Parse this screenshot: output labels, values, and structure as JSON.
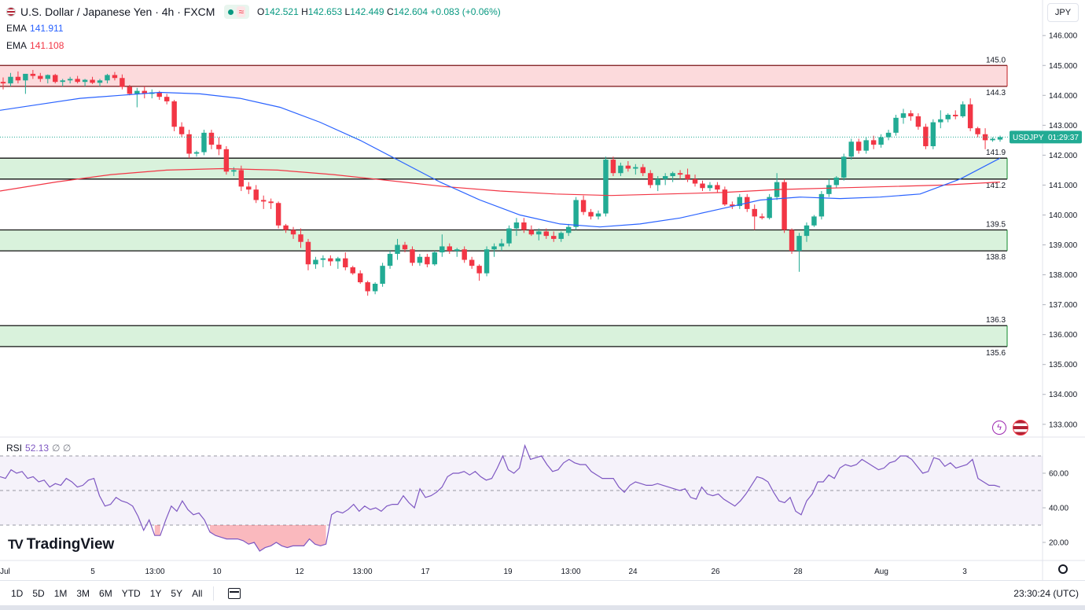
{
  "header": {
    "symbol_title": "U.S. Dollar / Japanese Yen · 4h · FXCM",
    "wave_icon": "≈",
    "ohlc": [
      {
        "k": "O",
        "v": "142.521"
      },
      {
        "k": "H",
        "v": "142.653"
      },
      {
        "k": "L",
        "v": "142.449"
      },
      {
        "k": "C",
        "v": "142.604"
      }
    ],
    "change": "+0.083 (+0.06%)",
    "currency": "JPY"
  },
  "indicators": {
    "ema1_label": "EMA",
    "ema1_value": "141.911",
    "ema2_label": "EMA",
    "ema2_value": "141.108",
    "rsi_label": "RSI",
    "rsi_value": "52.13",
    "rsi_extra": "∅ ∅"
  },
  "logo_text": "TradingView",
  "bottom": {
    "ranges": [
      "1D",
      "5D",
      "1M",
      "3M",
      "6M",
      "YTD",
      "1Y",
      "5Y",
      "All"
    ],
    "clock": "23:30:24 (UTC)"
  },
  "colors": {
    "up": "#22ab94",
    "down": "#f23645",
    "ema_fast": "#2962ff",
    "ema_slow": "#f23645",
    "rsi": "#7e57c2",
    "zone_red": "#fcd4d6",
    "zone_green": "#d2f0d6"
  },
  "chart_data": {
    "type": "candlestick",
    "symbol": "USDJPY",
    "timeframe": "4h",
    "countdown": "01:29:37",
    "last_price": 142.604,
    "y_axis": {
      "ticks": [
        "146.000",
        "145.000",
        "144.000",
        "143.000",
        "142.000",
        "141.000",
        "140.000",
        "139.000",
        "138.000",
        "137.000",
        "136.000",
        "135.000",
        "134.000",
        "133.000"
      ],
      "range": [
        132.6,
        146.4
      ]
    },
    "x_axis": {
      "ticks": [
        "Jul",
        "5",
        "13:00",
        "10",
        "12",
        "13:00",
        "17",
        "19",
        "13:00",
        "24",
        "26",
        "28",
        "Aug",
        "3"
      ]
    },
    "zones": [
      {
        "color": "red",
        "top": 145.0,
        "bottom": 144.3,
        "top_label": "145.0",
        "bottom_label": "144.3"
      },
      {
        "color": "green",
        "top": 141.9,
        "bottom": 141.2,
        "top_label": "141.9",
        "bottom_label": "141.2"
      },
      {
        "color": "green",
        "top": 139.5,
        "bottom": 138.8,
        "top_label": "139.5",
        "bottom_label": "138.8"
      },
      {
        "color": "green",
        "top": 136.3,
        "bottom": 135.6,
        "top_label": "136.3",
        "bottom_label": "135.6"
      }
    ],
    "candles_ohlc": [
      [
        144.45,
        144.6,
        144.2,
        144.4
      ],
      [
        144.4,
        144.75,
        144.3,
        144.62
      ],
      [
        144.62,
        144.8,
        144.4,
        144.5
      ],
      [
        144.5,
        144.6,
        144.05,
        144.72
      ],
      [
        144.72,
        144.85,
        144.55,
        144.65
      ],
      [
        144.65,
        144.75,
        144.45,
        144.55
      ],
      [
        144.55,
        144.7,
        144.4,
        144.68
      ],
      [
        144.68,
        144.72,
        144.4,
        144.45
      ],
      [
        144.45,
        144.55,
        144.3,
        144.5
      ],
      [
        144.5,
        144.62,
        144.4,
        144.55
      ],
      [
        144.55,
        144.65,
        144.4,
        144.45
      ],
      [
        144.45,
        144.55,
        144.3,
        144.52
      ],
      [
        144.52,
        144.62,
        144.38,
        144.42
      ],
      [
        144.42,
        144.55,
        144.3,
        144.5
      ],
      [
        144.5,
        144.72,
        144.4,
        144.68
      ],
      [
        144.68,
        144.78,
        144.5,
        144.58
      ],
      [
        144.58,
        144.7,
        144.2,
        144.28
      ],
      [
        144.28,
        144.35,
        144.0,
        144.05
      ],
      [
        144.05,
        144.25,
        143.6,
        144.15
      ],
      [
        144.15,
        144.3,
        143.9,
        144.05
      ],
      [
        144.05,
        144.2,
        143.9,
        144.1
      ],
      [
        144.1,
        144.15,
        143.85,
        143.95
      ],
      [
        143.95,
        144.05,
        143.7,
        143.8
      ],
      [
        143.8,
        143.85,
        142.8,
        142.95
      ],
      [
        142.95,
        143.1,
        142.6,
        142.7
      ],
      [
        142.7,
        142.85,
        141.9,
        142.05
      ],
      [
        142.05,
        142.15,
        141.95,
        142.1
      ],
      [
        142.1,
        142.85,
        142.0,
        142.75
      ],
      [
        142.75,
        142.85,
        142.2,
        142.35
      ],
      [
        142.35,
        142.6,
        142.0,
        142.2
      ],
      [
        142.2,
        142.3,
        141.35,
        141.45
      ],
      [
        141.45,
        141.6,
        141.3,
        141.5
      ],
      [
        141.5,
        141.65,
        140.8,
        140.95
      ],
      [
        140.95,
        141.1,
        140.7,
        140.85
      ],
      [
        140.85,
        141.0,
        140.4,
        140.5
      ],
      [
        140.5,
        140.65,
        140.2,
        140.45
      ],
      [
        140.45,
        140.55,
        140.2,
        140.4
      ],
      [
        140.4,
        140.45,
        139.55,
        139.65
      ],
      [
        139.65,
        139.7,
        139.4,
        139.5
      ],
      [
        139.5,
        139.6,
        139.2,
        139.35
      ],
      [
        139.35,
        139.55,
        138.9,
        139.1
      ],
      [
        139.1,
        139.2,
        138.15,
        138.35
      ],
      [
        138.35,
        138.6,
        138.2,
        138.5
      ],
      [
        138.5,
        138.65,
        138.25,
        138.55
      ],
      [
        138.55,
        138.65,
        138.3,
        138.45
      ],
      [
        138.45,
        138.6,
        138.2,
        138.55
      ],
      [
        138.55,
        138.75,
        138.15,
        138.25
      ],
      [
        138.25,
        138.3,
        138.0,
        138.05
      ],
      [
        138.05,
        138.15,
        137.7,
        137.75
      ],
      [
        137.75,
        137.8,
        137.3,
        137.45
      ],
      [
        137.45,
        137.75,
        137.35,
        137.7
      ],
      [
        137.7,
        138.4,
        137.6,
        138.3
      ],
      [
        138.3,
        138.8,
        138.2,
        138.7
      ],
      [
        138.7,
        139.2,
        138.5,
        139.0
      ],
      [
        139.0,
        139.1,
        138.75,
        138.85
      ],
      [
        138.85,
        138.95,
        138.3,
        138.4
      ],
      [
        138.4,
        138.7,
        138.3,
        138.6
      ],
      [
        138.6,
        138.7,
        138.25,
        138.35
      ],
      [
        138.35,
        138.8,
        138.3,
        138.75
      ],
      [
        138.75,
        139.35,
        138.6,
        138.95
      ],
      [
        138.95,
        139.05,
        138.7,
        138.8
      ],
      [
        138.8,
        138.9,
        138.6,
        138.85
      ],
      [
        138.85,
        138.95,
        138.4,
        138.5
      ],
      [
        138.5,
        138.6,
        138.2,
        138.3
      ],
      [
        138.3,
        138.35,
        137.8,
        138.05
      ],
      [
        138.05,
        138.95,
        137.95,
        138.85
      ],
      [
        138.85,
        139.05,
        138.6,
        138.95
      ],
      [
        138.95,
        139.2,
        138.8,
        139.05
      ],
      [
        139.05,
        139.65,
        138.95,
        139.55
      ],
      [
        139.55,
        139.9,
        139.3,
        139.75
      ],
      [
        139.75,
        139.9,
        139.4,
        139.5
      ],
      [
        139.5,
        139.65,
        139.3,
        139.35
      ],
      [
        139.35,
        139.55,
        139.15,
        139.45
      ],
      [
        139.45,
        139.55,
        139.2,
        139.3
      ],
      [
        139.3,
        139.45,
        139.1,
        139.2
      ],
      [
        139.2,
        139.45,
        139.1,
        139.4
      ],
      [
        139.4,
        139.7,
        139.3,
        139.6
      ],
      [
        139.6,
        140.6,
        139.5,
        140.5
      ],
      [
        140.5,
        140.65,
        140.0,
        140.1
      ],
      [
        140.1,
        140.2,
        139.85,
        139.95
      ],
      [
        139.95,
        140.15,
        139.85,
        140.05
      ],
      [
        140.05,
        141.95,
        139.95,
        141.85
      ],
      [
        141.85,
        141.95,
        141.3,
        141.4
      ],
      [
        141.4,
        141.75,
        141.3,
        141.65
      ],
      [
        141.65,
        141.8,
        141.45,
        141.55
      ],
      [
        141.55,
        141.7,
        141.35,
        141.6
      ],
      [
        141.6,
        141.7,
        141.3,
        141.4
      ],
      [
        141.4,
        141.5,
        140.9,
        141.0
      ],
      [
        141.0,
        141.3,
        140.8,
        141.2
      ],
      [
        141.2,
        141.4,
        141.0,
        141.3
      ],
      [
        141.3,
        141.45,
        141.1,
        141.4
      ],
      [
        141.4,
        141.5,
        141.2,
        141.35
      ],
      [
        141.35,
        141.55,
        141.1,
        141.2
      ],
      [
        141.2,
        141.35,
        140.95,
        141.05
      ],
      [
        141.05,
        141.15,
        140.8,
        140.9
      ],
      [
        140.9,
        141.1,
        140.8,
        141.0
      ],
      [
        141.0,
        141.1,
        140.75,
        140.85
      ],
      [
        140.85,
        140.95,
        140.3,
        140.35
      ],
      [
        140.35,
        140.45,
        140.2,
        140.3
      ],
      [
        140.3,
        140.7,
        140.2,
        140.6
      ],
      [
        140.6,
        140.7,
        140.1,
        140.2
      ],
      [
        140.2,
        140.35,
        139.5,
        139.95
      ],
      [
        139.95,
        140.05,
        139.85,
        139.9
      ],
      [
        139.9,
        140.7,
        139.85,
        140.6
      ],
      [
        140.6,
        141.4,
        140.5,
        141.1
      ],
      [
        141.1,
        141.2,
        139.4,
        139.5
      ],
      [
        139.5,
        139.55,
        138.7,
        138.8
      ],
      [
        138.8,
        139.4,
        138.1,
        139.3
      ],
      [
        139.3,
        139.75,
        139.1,
        139.65
      ],
      [
        139.65,
        140.0,
        139.6,
        139.95
      ],
      [
        139.95,
        140.8,
        139.85,
        140.7
      ],
      [
        140.7,
        141.2,
        140.6,
        141.0
      ],
      [
        141.0,
        141.3,
        140.9,
        141.25
      ],
      [
        141.25,
        142.05,
        141.15,
        141.95
      ],
      [
        141.95,
        142.55,
        141.85,
        142.45
      ],
      [
        142.45,
        142.55,
        142.05,
        142.15
      ],
      [
        142.15,
        142.6,
        142.05,
        142.5
      ],
      [
        142.5,
        142.65,
        142.2,
        142.35
      ],
      [
        142.35,
        142.7,
        142.25,
        142.6
      ],
      [
        142.6,
        142.85,
        142.5,
        142.75
      ],
      [
        142.75,
        143.35,
        142.65,
        143.25
      ],
      [
        143.25,
        143.55,
        143.05,
        143.4
      ],
      [
        143.4,
        143.5,
        143.15,
        143.3
      ],
      [
        143.3,
        143.4,
        142.85,
        142.95
      ],
      [
        142.95,
        143.05,
        142.2,
        142.3
      ],
      [
        142.3,
        143.2,
        142.2,
        143.1
      ],
      [
        143.1,
        143.5,
        142.9,
        143.2
      ],
      [
        143.2,
        143.4,
        143.1,
        143.35
      ],
      [
        143.35,
        143.5,
        143.2,
        143.3
      ],
      [
        143.3,
        143.8,
        143.25,
        143.7
      ],
      [
        143.7,
        143.9,
        142.8,
        142.9
      ],
      [
        142.9,
        142.95,
        142.6,
        142.7
      ],
      [
        142.7,
        142.9,
        142.2,
        142.5
      ],
      [
        142.5,
        142.6,
        142.45,
        142.55
      ],
      [
        142.521,
        142.653,
        142.449,
        142.604
      ]
    ],
    "ema_fast": [
      143.5,
      143.7,
      143.9,
      144.0,
      144.1,
      144.05,
      143.9,
      143.6,
      143.1,
      142.5,
      141.8,
      141.1,
      140.5,
      140.0,
      139.7,
      139.6,
      139.7,
      139.9,
      140.2,
      140.5,
      140.6,
      140.55,
      140.6,
      140.7,
      141.2,
      141.9
    ],
    "ema_slow": [
      140.8,
      141.1,
      141.35,
      141.5,
      141.55,
      141.5,
      141.35,
      141.15,
      140.95,
      140.8,
      140.7,
      140.65,
      140.7,
      140.75,
      140.85,
      140.9,
      140.95,
      141.0,
      141.1
    ],
    "rsi_range": [
      10,
      80
    ],
    "rsi_levels": [
      70,
      50,
      30
    ],
    "rsi_y_ticks": [
      "60.00",
      "40.00",
      "20.00"
    ],
    "rsi": [
      58,
      57,
      62,
      60,
      61,
      57,
      58,
      55,
      56,
      52,
      54,
      53,
      57,
      55,
      52,
      53,
      56,
      57,
      47,
      41,
      42,
      46,
      44,
      43,
      41,
      35,
      27,
      33,
      24,
      24,
      33,
      41,
      38,
      44,
      39,
      36,
      37,
      33,
      26,
      24,
      23,
      22,
      22,
      22,
      21,
      19,
      20,
      15,
      17,
      18,
      20,
      18,
      17,
      18,
      18,
      18,
      22,
      19,
      18,
      19,
      36,
      38,
      37,
      39,
      42,
      38,
      41,
      39,
      40,
      38,
      41,
      42,
      42,
      47,
      43,
      40,
      51,
      46,
      47,
      49,
      52,
      58,
      60,
      60,
      61,
      59,
      61,
      58,
      56,
      57,
      63,
      70,
      62,
      60,
      63,
      76,
      68,
      69,
      70,
      65,
      61,
      62,
      66,
      68,
      66,
      65,
      65,
      61,
      59,
      57,
      57,
      57,
      52,
      49,
      53,
      55,
      54,
      53,
      53,
      54,
      53,
      52,
      51,
      50,
      51,
      46,
      45,
      52,
      48,
      47,
      48,
      45,
      43,
      41,
      44,
      48,
      53,
      58,
      57,
      55,
      49,
      44,
      43,
      46,
      38,
      36,
      44,
      48,
      55,
      55,
      59,
      57,
      63,
      65,
      64,
      65,
      68,
      66,
      64,
      62,
      63,
      66,
      67,
      70,
      70,
      68,
      64,
      60,
      61,
      69,
      68,
      64,
      66,
      63,
      64,
      65,
      68,
      57,
      55,
      53,
      53,
      52
    ]
  }
}
